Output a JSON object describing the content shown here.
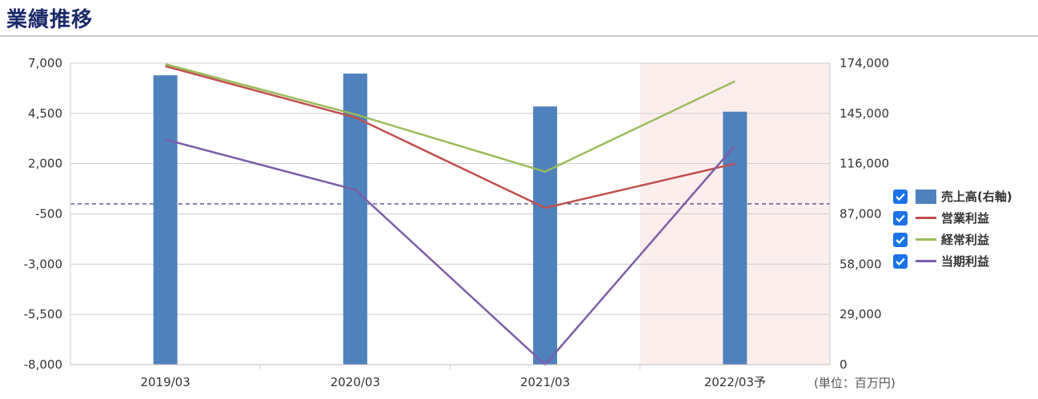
{
  "header": {
    "title": "業績推移"
  },
  "chart_data": {
    "type": "bar+line",
    "categories": [
      "2019/03",
      "2020/03",
      "2021/03",
      "2022/03予"
    ],
    "forecast_index": 3,
    "left_axis": {
      "ylim": [
        -8000,
        7000
      ],
      "ticks": [
        "7,000",
        "4,500",
        "2,000",
        "-500",
        "-3,000",
        "-5,500",
        "-8,000"
      ]
    },
    "right_axis": {
      "ylim": [
        0,
        174000
      ],
      "ticks": [
        "174,000",
        "145,000",
        "116,000",
        "87,000",
        "58,000",
        "29,000",
        "0"
      ]
    },
    "zero_line": 0,
    "series": [
      {
        "name": "売上高(右軸)",
        "type": "bar",
        "axis": "right",
        "color": "#4f81bd",
        "values": [
          167000,
          168000,
          149000,
          146000
        ]
      },
      {
        "name": "営業利益",
        "type": "line",
        "axis": "left",
        "color": "#c0504d",
        "values": [
          6850,
          4300,
          -200,
          2000
        ]
      },
      {
        "name": "経常利益",
        "type": "line",
        "axis": "left",
        "color": "#9bbb59",
        "values": [
          6950,
          4450,
          1600,
          6100
        ]
      },
      {
        "name": "当期利益",
        "type": "line",
        "axis": "left",
        "color": "#7b5ea7",
        "values": [
          3200,
          700,
          -8000,
          2900
        ]
      }
    ],
    "legend_position": "right",
    "grid": true,
    "unit_note": "(単位：百万円)"
  }
}
